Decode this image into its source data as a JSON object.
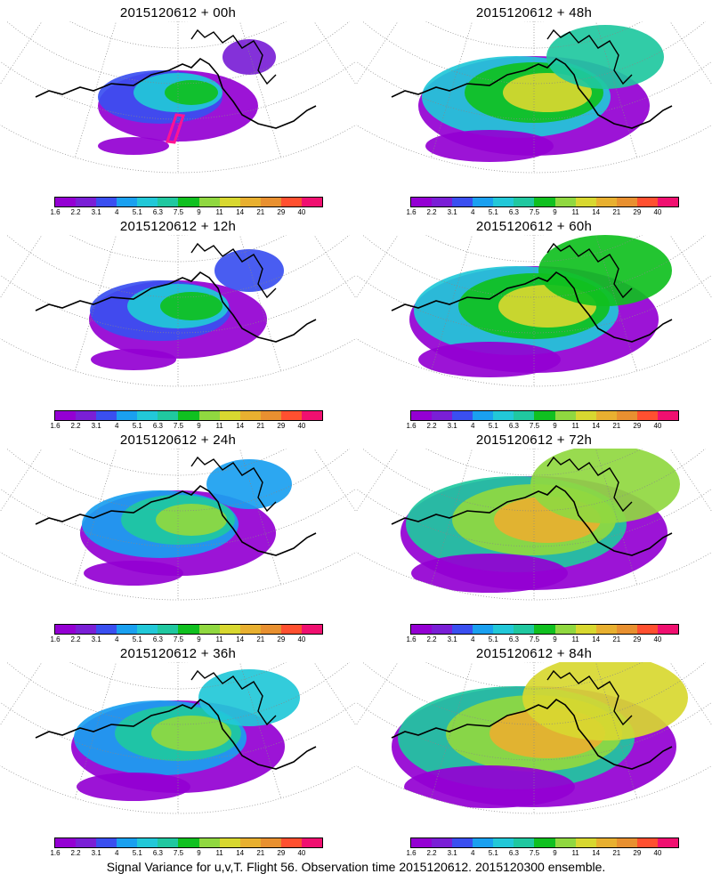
{
  "caption": "Signal Variance for u,v,T. Flight 56. Observation time 2015120612. 2015120300 ensemble.",
  "colorbar": {
    "colors": [
      "#9400d3",
      "#7a1fd6",
      "#3a4ff0",
      "#1aa0f0",
      "#22c8d8",
      "#20c8a0",
      "#10c020",
      "#90d840",
      "#d8d830",
      "#e8b030",
      "#e89030",
      "#ff5030",
      "#f01070"
    ],
    "ticks": [
      "1.6",
      "2.2",
      "3.1",
      "4",
      "5.1",
      "6.3",
      "7.5",
      "9",
      "11",
      "14",
      "21",
      "29",
      "40"
    ]
  },
  "panels": [
    {
      "title": "2015120612 + 00h",
      "intensity": 0
    },
    {
      "title": "2015120612 + 48h",
      "intensity": 4
    },
    {
      "title": "2015120612 + 12h",
      "intensity": 1
    },
    {
      "title": "2015120612 + 60h",
      "intensity": 5
    },
    {
      "title": "2015120612 + 24h",
      "intensity": 2
    },
    {
      "title": "2015120612 + 72h",
      "intensity": 6
    },
    {
      "title": "2015120612 + 36h",
      "intensity": 3
    },
    {
      "title": "2015120612 + 84h",
      "intensity": 7
    }
  ]
}
